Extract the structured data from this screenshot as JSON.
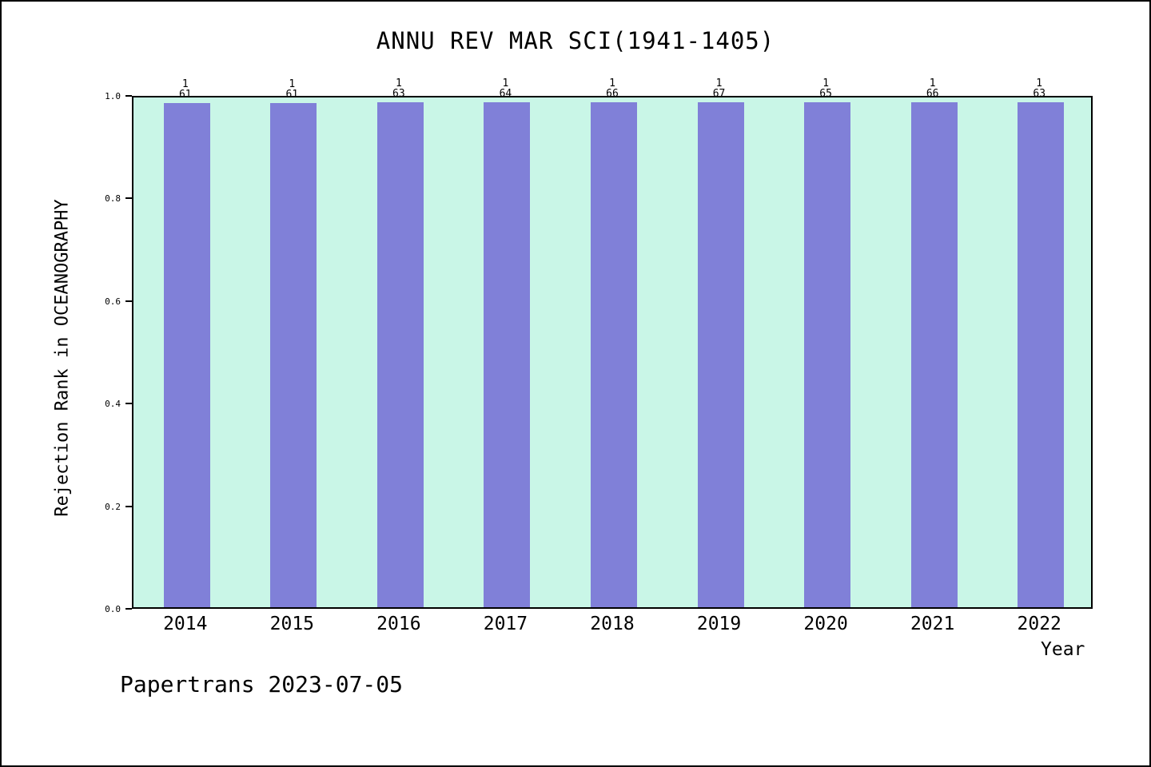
{
  "title": "ANNU REV MAR SCI(1941-1405)",
  "footer": "Papertrans 2023-07-05",
  "chart_data": {
    "type": "bar",
    "title": "ANNU REV MAR SCI(1941-1405)",
    "xlabel": "Year",
    "ylabel": "Rejection Rank in OCEANOGRAPHY",
    "categories": [
      "2014",
      "2015",
      "2016",
      "2017",
      "2018",
      "2019",
      "2020",
      "2021",
      "2022"
    ],
    "values": [
      0.9836,
      0.9836,
      0.9841,
      0.9844,
      0.9848,
      0.9851,
      0.9846,
      0.9848,
      0.9841
    ],
    "bar_labels": [
      {
        "rank": "1",
        "total": "61"
      },
      {
        "rank": "1",
        "total": "61"
      },
      {
        "rank": "1",
        "total": "63"
      },
      {
        "rank": "1",
        "total": "64"
      },
      {
        "rank": "1",
        "total": "66"
      },
      {
        "rank": "1",
        "total": "67"
      },
      {
        "rank": "1",
        "total": "65"
      },
      {
        "rank": "1",
        "total": "66"
      },
      {
        "rank": "1",
        "total": "63"
      }
    ],
    "yticks": [
      "0.0",
      "0.2",
      "0.4",
      "0.6",
      "0.8",
      "1.0"
    ],
    "ylim": [
      0,
      1
    ],
    "grid": false,
    "legend_position": "none",
    "colors": {
      "bar": "#8080d8",
      "plot_bg": "#c9f6e7",
      "axis": "#000000"
    }
  }
}
